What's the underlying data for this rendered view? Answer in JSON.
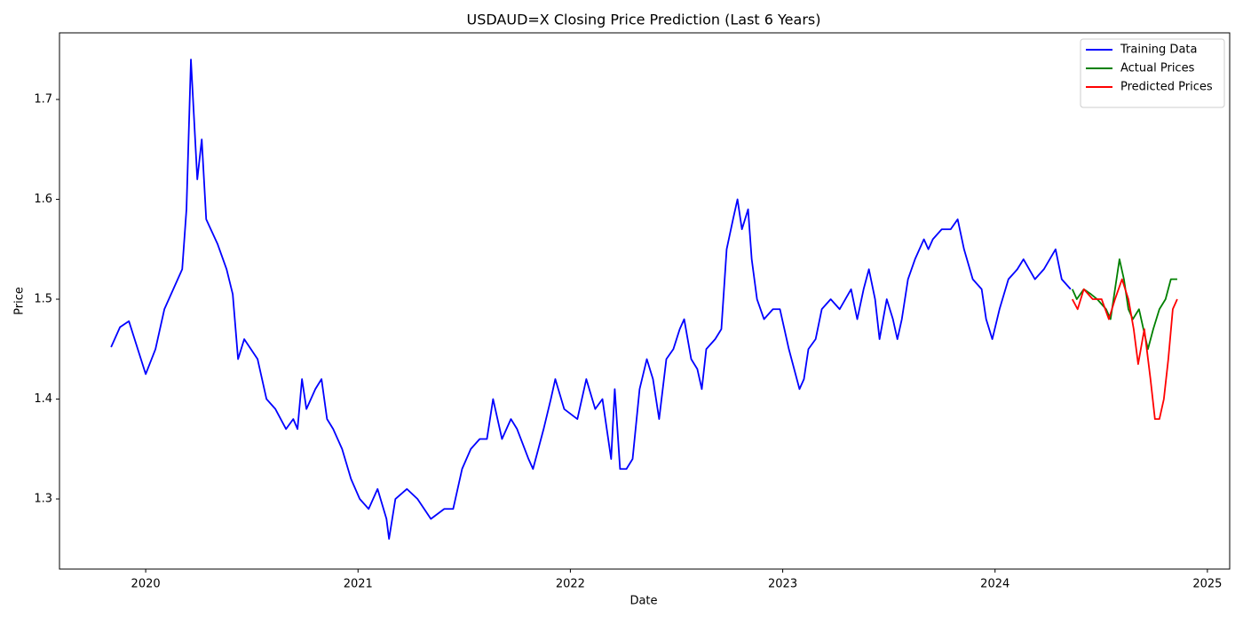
{
  "chart_data": {
    "type": "line",
    "title": "USDAUD=X Closing Price Prediction (Last 6 Years)",
    "x_label": "Date",
    "y_label": "Price",
    "xlim": [
      2019.594,
      2025.105
    ],
    "xticks": [
      2020,
      2021,
      2022,
      2023,
      2024,
      2025
    ],
    "ylim": [
      1.2298,
      1.7667
    ],
    "yticks": [
      1.3,
      1.4,
      1.5,
      1.6,
      1.7
    ],
    "grid": false,
    "legend": "upper right",
    "series": [
      {
        "name": "Training Data",
        "color": "#0000ff",
        "x": [
          2019.837,
          2019.879,
          2019.921,
          2020.0,
          2020.046,
          2020.088,
          2020.172,
          2020.192,
          2020.213,
          2020.243,
          2020.264,
          2020.285,
          2020.339,
          2020.381,
          2020.41,
          2020.435,
          2020.464,
          2020.527,
          2020.569,
          2020.611,
          2020.661,
          2020.695,
          2020.715,
          2020.736,
          2020.757,
          2020.799,
          2020.828,
          2020.854,
          2020.883,
          2020.925,
          2020.967,
          2021.008,
          2021.05,
          2021.092,
          2021.134,
          2021.146,
          2021.176,
          2021.23,
          2021.28,
          2021.343,
          2021.406,
          2021.448,
          2021.49,
          2021.531,
          2021.573,
          2021.607,
          2021.636,
          2021.678,
          2021.72,
          2021.749,
          2021.803,
          2021.824,
          2021.874,
          2021.908,
          2021.929,
          2021.971,
          2022.033,
          2022.075,
          2022.117,
          2022.151,
          2022.192,
          2022.209,
          2022.234,
          2022.264,
          2022.293,
          2022.326,
          2022.36,
          2022.389,
          2022.418,
          2022.452,
          2022.485,
          2022.515,
          2022.536,
          2022.569,
          2022.598,
          2022.619,
          2022.64,
          2022.682,
          2022.711,
          2022.736,
          2022.766,
          2022.787,
          2022.808,
          2022.837,
          2022.854,
          2022.879,
          2022.912,
          2022.954,
          2022.987,
          2023.029,
          2023.079,
          2023.1,
          2023.121,
          2023.155,
          2023.184,
          2023.226,
          2023.268,
          2023.322,
          2023.351,
          2023.381,
          2023.406,
          2023.435,
          2023.456,
          2023.49,
          2023.519,
          2023.54,
          2023.561,
          2023.59,
          2023.623,
          2023.665,
          2023.686,
          2023.707,
          2023.749,
          2023.791,
          2023.824,
          2023.854,
          2023.895,
          2023.937,
          2023.958,
          2023.987,
          2024.021,
          2024.063,
          2024.105,
          2024.134,
          2024.188,
          2024.23,
          2024.285,
          2024.314,
          2024.356
        ],
        "values": [
          1.452,
          1.472,
          1.478,
          1.425,
          1.45,
          1.49,
          1.53,
          1.59,
          1.74,
          1.62,
          1.66,
          1.58,
          1.555,
          1.53,
          1.505,
          1.44,
          1.46,
          1.44,
          1.4,
          1.39,
          1.37,
          1.38,
          1.37,
          1.42,
          1.39,
          1.41,
          1.42,
          1.38,
          1.37,
          1.35,
          1.32,
          1.3,
          1.29,
          1.31,
          1.28,
          1.26,
          1.3,
          1.31,
          1.3,
          1.28,
          1.29,
          1.29,
          1.33,
          1.35,
          1.36,
          1.36,
          1.4,
          1.36,
          1.38,
          1.37,
          1.34,
          1.33,
          1.37,
          1.4,
          1.42,
          1.39,
          1.38,
          1.42,
          1.39,
          1.4,
          1.34,
          1.41,
          1.33,
          1.33,
          1.34,
          1.41,
          1.44,
          1.42,
          1.38,
          1.44,
          1.45,
          1.47,
          1.48,
          1.44,
          1.43,
          1.41,
          1.45,
          1.46,
          1.47,
          1.55,
          1.58,
          1.6,
          1.57,
          1.59,
          1.54,
          1.5,
          1.48,
          1.49,
          1.49,
          1.45,
          1.41,
          1.42,
          1.45,
          1.46,
          1.49,
          1.5,
          1.49,
          1.51,
          1.48,
          1.51,
          1.53,
          1.5,
          1.46,
          1.5,
          1.48,
          1.46,
          1.48,
          1.52,
          1.54,
          1.56,
          1.55,
          1.56,
          1.57,
          1.57,
          1.58,
          1.55,
          1.52,
          1.51,
          1.48,
          1.46,
          1.49,
          1.52,
          1.53,
          1.54,
          1.52,
          1.53,
          1.55,
          1.52,
          1.51
        ]
      },
      {
        "name": "Actual Prices",
        "color": "#008000",
        "x": [
          2024.364,
          2024.385,
          2024.418,
          2024.452,
          2024.481,
          2024.523,
          2024.544,
          2024.565,
          2024.586,
          2024.607,
          2024.628,
          2024.649,
          2024.678,
          2024.699,
          2024.72,
          2024.745,
          2024.774,
          2024.803,
          2024.828,
          2024.858
        ],
        "values": [
          1.51,
          1.5,
          1.51,
          1.505,
          1.5,
          1.49,
          1.48,
          1.51,
          1.54,
          1.52,
          1.49,
          1.48,
          1.49,
          1.47,
          1.45,
          1.47,
          1.49,
          1.5,
          1.52,
          1.52
        ]
      },
      {
        "name": "Predicted Prices",
        "color": "#ff0000",
        "x": [
          2024.364,
          2024.389,
          2024.418,
          2024.46,
          2024.502,
          2024.536,
          2024.565,
          2024.598,
          2024.628,
          2024.653,
          2024.674,
          2024.703,
          2024.732,
          2024.753,
          2024.774,
          2024.795,
          2024.816,
          2024.837,
          2024.858
        ],
        "values": [
          1.5,
          1.49,
          1.51,
          1.5,
          1.5,
          1.48,
          1.5,
          1.52,
          1.5,
          1.47,
          1.435,
          1.47,
          1.42,
          1.38,
          1.38,
          1.4,
          1.44,
          1.49,
          1.5
        ]
      }
    ]
  }
}
